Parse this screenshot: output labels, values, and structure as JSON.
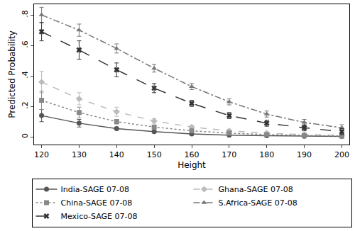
{
  "chart_data": {
    "type": "line",
    "x_label": "Height",
    "y_label": "Predicted Probability",
    "x": [
      120,
      130,
      140,
      150,
      160,
      170,
      180,
      190,
      200
    ],
    "xlim": [
      118,
      202
    ],
    "xticks": [
      120,
      130,
      140,
      150,
      160,
      170,
      180,
      190,
      200
    ],
    "ylim": [
      -0.05,
      0.87
    ],
    "yticks": [
      {
        "value": 0,
        "label": "0"
      },
      {
        "value": 0.2,
        "label": ".2"
      },
      {
        "value": 0.4,
        "label": ".4"
      },
      {
        "value": 0.6,
        "label": ".6"
      },
      {
        "value": 0.8,
        "label": ".8"
      }
    ],
    "grid": false,
    "legend": "bottom",
    "series": [
      {
        "name": "India-SAGE 07-08",
        "color": "#555555",
        "marker": "circle",
        "line_style": "solid",
        "values": [
          0.14,
          0.09,
          0.055,
          0.035,
          0.02,
          0.012,
          0.008,
          0.005,
          0.003
        ],
        "errors": [
          0.04,
          0.025,
          0.01,
          0.008,
          0.005,
          0.004,
          0.003,
          0.003,
          0.003
        ]
      },
      {
        "name": "Ghana-SAGE 07-08",
        "color": "#bbbbbb",
        "marker": "diamond",
        "line_style": "dash",
        "values": [
          0.36,
          0.25,
          0.165,
          0.105,
          0.065,
          0.04,
          0.025,
          0.015,
          0.01
        ],
        "errors": [
          0.07,
          0.04,
          0.03,
          0.015,
          0.01,
          0.008,
          0.006,
          0.006,
          0.006
        ]
      },
      {
        "name": "China-SAGE 07-08",
        "color": "#888888",
        "marker": "square",
        "line_style": "dot",
        "values": [
          0.24,
          0.16,
          0.1,
          0.065,
          0.04,
          0.025,
          0.015,
          0.01,
          0.006
        ],
        "errors": [
          0.06,
          0.035,
          0.015,
          0.01,
          0.008,
          0.006,
          0.005,
          0.005,
          0.005
        ]
      },
      {
        "name": "S.Africa-SAGE 07-08",
        "color": "#777777",
        "marker": "triangle-up",
        "line_style": "dashdot",
        "values": [
          0.8,
          0.7,
          0.58,
          0.45,
          0.33,
          0.23,
          0.15,
          0.095,
          0.06
        ],
        "errors": [
          0.05,
          0.04,
          0.03,
          0.025,
          0.02,
          0.02,
          0.02,
          0.02,
          0.02
        ]
      },
      {
        "name": "Mexico-SAGE 07-08",
        "color": "#333333",
        "marker": "x",
        "line_style": "longdash",
        "values": [
          0.69,
          0.57,
          0.44,
          0.32,
          0.22,
          0.14,
          0.09,
          0.06,
          0.035
        ],
        "errors": [
          0.06,
          0.06,
          0.045,
          0.03,
          0.02,
          0.02,
          0.02,
          0.02,
          0.02
        ]
      }
    ]
  }
}
